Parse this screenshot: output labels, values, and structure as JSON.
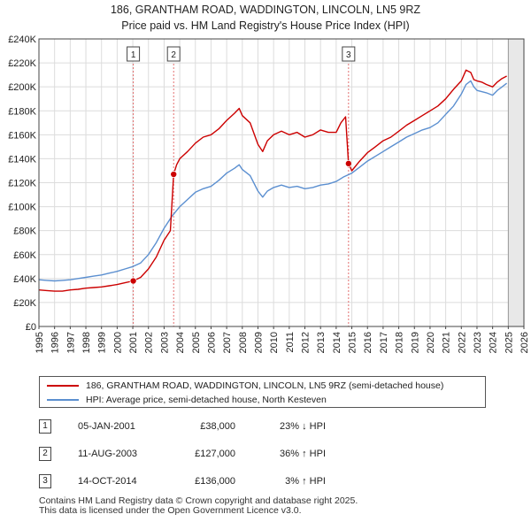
{
  "header": {
    "title_line1": "186, GRANTHAM ROAD, WADDINGTON, LINCOLN, LN5 9RZ",
    "title_line2": "Price paid vs. HM Land Registry's House Price Index (HPI)"
  },
  "chart_data": {
    "type": "line",
    "xlim": [
      1995,
      2026
    ],
    "ylim": [
      0,
      240000
    ],
    "x_ticks": [
      1995,
      1996,
      1997,
      1998,
      1999,
      2000,
      2001,
      2002,
      2003,
      2004,
      2005,
      2006,
      2007,
      2008,
      2009,
      2010,
      2011,
      2012,
      2013,
      2014,
      2015,
      2016,
      2017,
      2018,
      2019,
      2020,
      2021,
      2022,
      2023,
      2024,
      2025,
      2026
    ],
    "y_ticks": [
      {
        "value": 0,
        "label": "£0"
      },
      {
        "value": 20000,
        "label": "£20K"
      },
      {
        "value": 40000,
        "label": "£40K"
      },
      {
        "value": 60000,
        "label": "£60K"
      },
      {
        "value": 80000,
        "label": "£80K"
      },
      {
        "value": 100000,
        "label": "£100K"
      },
      {
        "value": 120000,
        "label": "£120K"
      },
      {
        "value": 140000,
        "label": "£140K"
      },
      {
        "value": 160000,
        "label": "£160K"
      },
      {
        "value": 180000,
        "label": "£180K"
      },
      {
        "value": 200000,
        "label": "£200K"
      },
      {
        "value": 220000,
        "label": "£220K"
      },
      {
        "value": 240000,
        "label": "£240K"
      }
    ],
    "grid": true,
    "forecast_from": 2025.0,
    "series": [
      {
        "name": "186, GRANTHAM ROAD, WADDINGTON, LINCOLN, LN5 9RZ (semi-detached house)",
        "color": "#cc0000",
        "x": [
          1995.0,
          1995.5,
          1996.0,
          1996.5,
          1997.0,
          1997.5,
          1998.0,
          1998.5,
          1999.0,
          1999.5,
          2000.0,
          2000.5,
          2001.03,
          2001.5,
          2002.0,
          2002.5,
          2003.0,
          2003.4,
          2003.61,
          2003.8,
          2004.0,
          2004.5,
          2005.0,
          2005.5,
          2006.0,
          2006.5,
          2007.0,
          2007.5,
          2007.8,
          2008.0,
          2008.5,
          2009.0,
          2009.3,
          2009.6,
          2010.0,
          2010.5,
          2011.0,
          2011.5,
          2012.0,
          2012.5,
          2013.0,
          2013.5,
          2014.0,
          2014.3,
          2014.6,
          2014.79,
          2015.0,
          2015.5,
          2016.0,
          2016.5,
          2017.0,
          2017.5,
          2018.0,
          2018.5,
          2019.0,
          2019.5,
          2020.0,
          2020.5,
          2021.0,
          2021.5,
          2022.0,
          2022.3,
          2022.6,
          2022.8,
          2023.0,
          2023.3,
          2023.6,
          2024.0,
          2024.3,
          2024.6,
          2024.9
        ],
        "y": [
          30500,
          30000,
          29500,
          29500,
          30500,
          31000,
          32000,
          32500,
          33000,
          34000,
          35000,
          36500,
          38000,
          41000,
          48000,
          58000,
          72000,
          80000,
          127000,
          135000,
          140000,
          146000,
          153000,
          158000,
          160000,
          165000,
          172000,
          178000,
          182000,
          176000,
          170000,
          152000,
          146000,
          155000,
          160000,
          163000,
          160000,
          162000,
          158000,
          160000,
          164000,
          162000,
          162000,
          170000,
          175000,
          136000,
          130000,
          138000,
          145000,
          150000,
          155000,
          158000,
          163000,
          168000,
          172000,
          176000,
          180000,
          184000,
          190000,
          198000,
          205000,
          214000,
          212000,
          206000,
          205000,
          204000,
          202000,
          200000,
          204000,
          207000,
          209000
        ]
      },
      {
        "name": "HPI: Average price, semi-detached house, North Kesteven",
        "color": "#5b8fd0",
        "x": [
          1995.0,
          1995.5,
          1996.0,
          1996.5,
          1997.0,
          1997.5,
          1998.0,
          1998.5,
          1999.0,
          1999.5,
          2000.0,
          2000.5,
          2001.0,
          2001.5,
          2002.0,
          2002.5,
          2003.0,
          2003.5,
          2004.0,
          2004.5,
          2005.0,
          2005.5,
          2006.0,
          2006.5,
          2007.0,
          2007.5,
          2007.8,
          2008.0,
          2008.5,
          2009.0,
          2009.3,
          2009.6,
          2010.0,
          2010.5,
          2011.0,
          2011.5,
          2012.0,
          2012.5,
          2013.0,
          2013.5,
          2014.0,
          2014.5,
          2015.0,
          2015.5,
          2016.0,
          2016.5,
          2017.0,
          2017.5,
          2018.0,
          2018.5,
          2019.0,
          2019.5,
          2020.0,
          2020.5,
          2021.0,
          2021.5,
          2022.0,
          2022.3,
          2022.6,
          2022.8,
          2023.0,
          2023.3,
          2023.6,
          2024.0,
          2024.3,
          2024.6,
          2024.9
        ],
        "y": [
          39000,
          38500,
          38000,
          38500,
          39000,
          40000,
          41000,
          42000,
          43000,
          44500,
          46000,
          48000,
          50000,
          53000,
          60000,
          70000,
          82000,
          92000,
          100000,
          106000,
          112000,
          115000,
          117000,
          122000,
          128000,
          132000,
          135000,
          131000,
          126000,
          113000,
          108000,
          113000,
          116000,
          118000,
          116000,
          117000,
          115000,
          116000,
          118000,
          119000,
          121000,
          125000,
          128000,
          133000,
          138000,
          142000,
          146000,
          150000,
          154000,
          158000,
          161000,
          164000,
          166000,
          170000,
          177000,
          184000,
          194000,
          202000,
          205000,
          200000,
          197000,
          196000,
          195000,
          193000,
          197000,
          200000,
          203000
        ]
      }
    ],
    "sales": [
      {
        "label": "1",
        "x": 2001.03,
        "price": 38000
      },
      {
        "label": "2",
        "x": 2003.61,
        "price": 127000
      },
      {
        "label": "3",
        "x": 2014.79,
        "price": 136000
      }
    ]
  },
  "legend": {
    "items": [
      {
        "label": "186, GRANTHAM ROAD, WADDINGTON, LINCOLN, LN5 9RZ (semi-detached house)",
        "color": "#cc0000"
      },
      {
        "label": "HPI: Average price, semi-detached house, North Kesteven",
        "color": "#5b8fd0"
      }
    ]
  },
  "transactions": [
    {
      "num": "1",
      "date": "05-JAN-2001",
      "price": "£38,000",
      "hpi": "23% ↓ HPI"
    },
    {
      "num": "2",
      "date": "11-AUG-2003",
      "price": "£127,000",
      "hpi": "36% ↑ HPI"
    },
    {
      "num": "3",
      "date": "14-OCT-2014",
      "price": "£136,000",
      "hpi": "3% ↑ HPI"
    }
  ],
  "footer": {
    "line1": "Contains HM Land Registry data © Crown copyright and database right 2025.",
    "line2": "This data is licensed under the Open Government Licence v3.0."
  }
}
